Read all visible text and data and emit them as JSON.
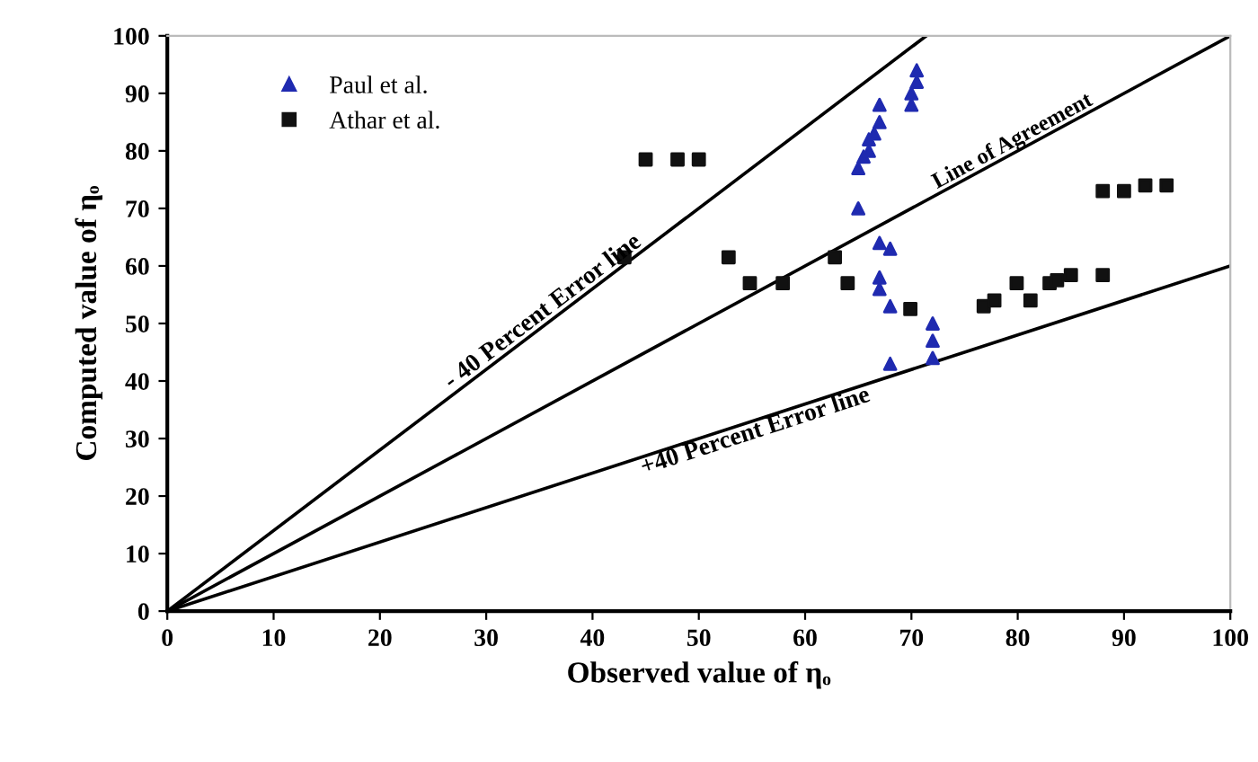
{
  "chart_data": {
    "type": "scatter",
    "xlabel": "Observed value of ηₒ",
    "ylabel": "Computed value of ηₒ",
    "xlim": [
      0,
      100
    ],
    "ylim": [
      0,
      100
    ],
    "xticks": [
      0,
      10,
      20,
      30,
      40,
      50,
      60,
      70,
      80,
      90,
      100
    ],
    "yticks": [
      0,
      10,
      20,
      30,
      40,
      50,
      60,
      70,
      80,
      90,
      100
    ],
    "grid": false,
    "legend": "top left",
    "series": [
      {
        "name": "Paul et al.",
        "color": "#1f2ab0",
        "marker": "triangle",
        "x": [
          65,
          65,
          65.5,
          66,
          66,
          66.5,
          67,
          67,
          70,
          70,
          70.5,
          70.5,
          67,
          68,
          67,
          67,
          68,
          68,
          72,
          72,
          72
        ],
        "values": [
          70,
          77,
          79,
          80,
          82,
          83,
          85,
          88,
          88,
          90,
          92,
          94,
          64,
          63,
          58,
          56,
          53,
          43,
          50,
          47,
          44
        ]
      },
      {
        "name": "Athar et al.",
        "color": "#111111",
        "marker": "square",
        "x": [
          43,
          45,
          48,
          50,
          52.8,
          54.8,
          57.9,
          62.8,
          64,
          69.9,
          76.8,
          77.8,
          79.9,
          81.2,
          83,
          83.7,
          85,
          88,
          88,
          90,
          92,
          94
        ],
        "values": [
          61.5,
          78.5,
          78.5,
          78.5,
          61.5,
          57,
          57,
          61.5,
          57,
          52.5,
          53,
          54,
          57,
          54,
          57,
          57.5,
          58.4,
          58.4,
          73,
          73,
          74,
          74
        ]
      },
      {
        "type": "line",
        "color": "#000000",
        "marker": "none",
        "x": [
          0,
          71.4
        ],
        "values": [
          0,
          100
        ]
      },
      {
        "type": "line",
        "color": "#000000",
        "marker": "none",
        "x": [
          0,
          100
        ],
        "values": [
          0,
          100
        ]
      },
      {
        "type": "line",
        "color": "#000000",
        "marker": "none",
        "x": [
          0,
          100
        ],
        "values": [
          0,
          60
        ]
      }
    ],
    "annotations": [
      {
        "text": "- 40 Percent Error line",
        "x": 36,
        "y": 50.4
      },
      {
        "text": "Line of Agreement",
        "x": 80,
        "y": 80
      },
      {
        "text": "+40 Percent Error line",
        "x": 55,
        "y": 33
      }
    ]
  }
}
